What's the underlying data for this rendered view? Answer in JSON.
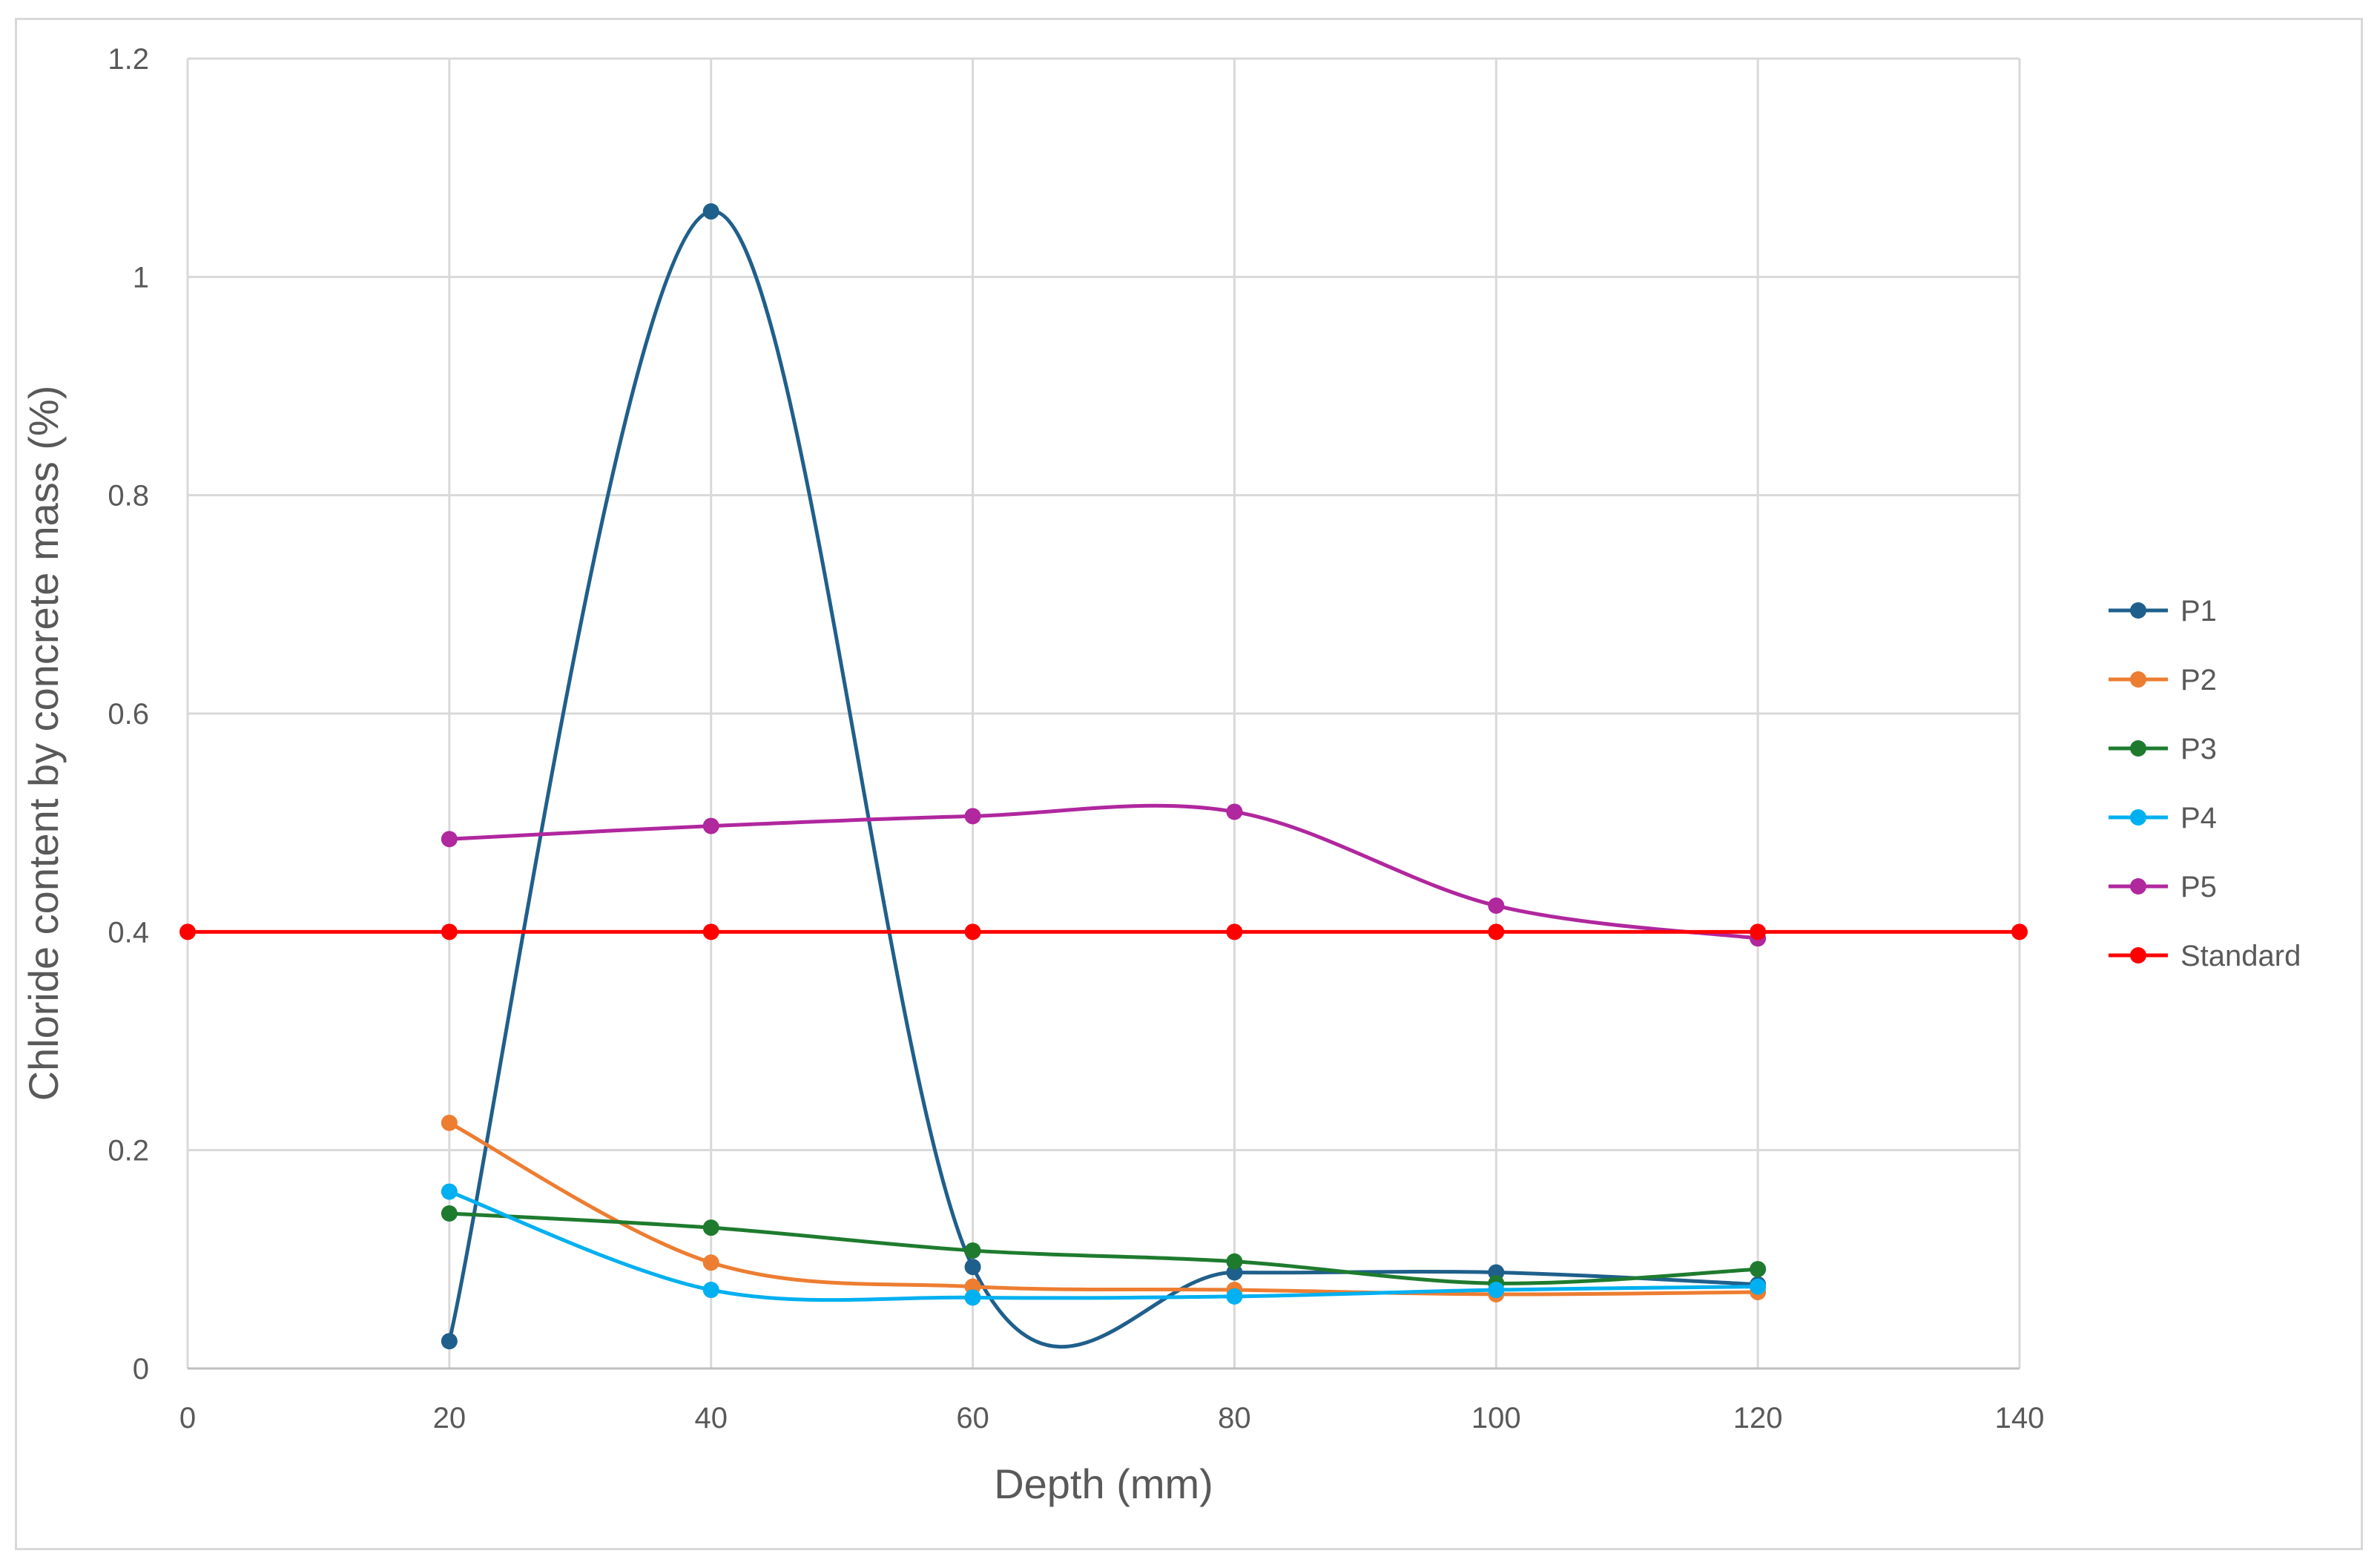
{
  "chart_data": {
    "type": "line",
    "title": "",
    "xlabel": "Depth (mm)",
    "ylabel": "Chloride content by concrete mass (%)",
    "xlim": [
      0,
      140
    ],
    "ylim": [
      0,
      1.2
    ],
    "xticks": [
      0,
      20,
      40,
      60,
      80,
      100,
      120,
      140
    ],
    "yticks": [
      0,
      0.2,
      0.4,
      0.6,
      0.8,
      1,
      1.2
    ],
    "xtick_labels": [
      "0",
      "20",
      "40",
      "60",
      "80",
      "100",
      "120",
      "140"
    ],
    "ytick_labels": [
      "0",
      "0.2",
      "0.4",
      "0.6",
      "0.8",
      "1",
      "1.2"
    ],
    "grid": true,
    "smooth_lines": true,
    "legend_position": "right",
    "series": [
      {
        "name": "P1",
        "color": "#1f5f8b",
        "x": [
          20,
          40,
          60,
          80,
          100,
          120
        ],
        "y": [
          0.025,
          1.06,
          0.093,
          0.088,
          0.088,
          0.077
        ]
      },
      {
        "name": "P2",
        "color": "#ed7d31",
        "x": [
          20,
          40,
          60,
          80,
          100,
          120
        ],
        "y": [
          0.225,
          0.097,
          0.075,
          0.072,
          0.068,
          0.07
        ]
      },
      {
        "name": "P3",
        "color": "#1e7b2e",
        "x": [
          20,
          40,
          60,
          80,
          100,
          120
        ],
        "y": [
          0.142,
          0.129,
          0.108,
          0.098,
          0.078,
          0.091
        ]
      },
      {
        "name": "P4",
        "color": "#00b0f0",
        "x": [
          20,
          40,
          60,
          80,
          100,
          120
        ],
        "y": [
          0.162,
          0.072,
          0.065,
          0.066,
          0.072,
          0.075
        ]
      },
      {
        "name": "P5",
        "color": "#b0279e",
        "x": [
          20,
          40,
          60,
          80,
          100,
          120
        ],
        "y": [
          0.485,
          0.497,
          0.506,
          0.51,
          0.424,
          0.394
        ]
      },
      {
        "name": "Standard",
        "color": "#ff0000",
        "x": [
          0,
          20,
          40,
          60,
          80,
          100,
          120,
          140
        ],
        "y": [
          0.4,
          0.4,
          0.4,
          0.4,
          0.4,
          0.4,
          0.4,
          0.4
        ]
      }
    ]
  }
}
